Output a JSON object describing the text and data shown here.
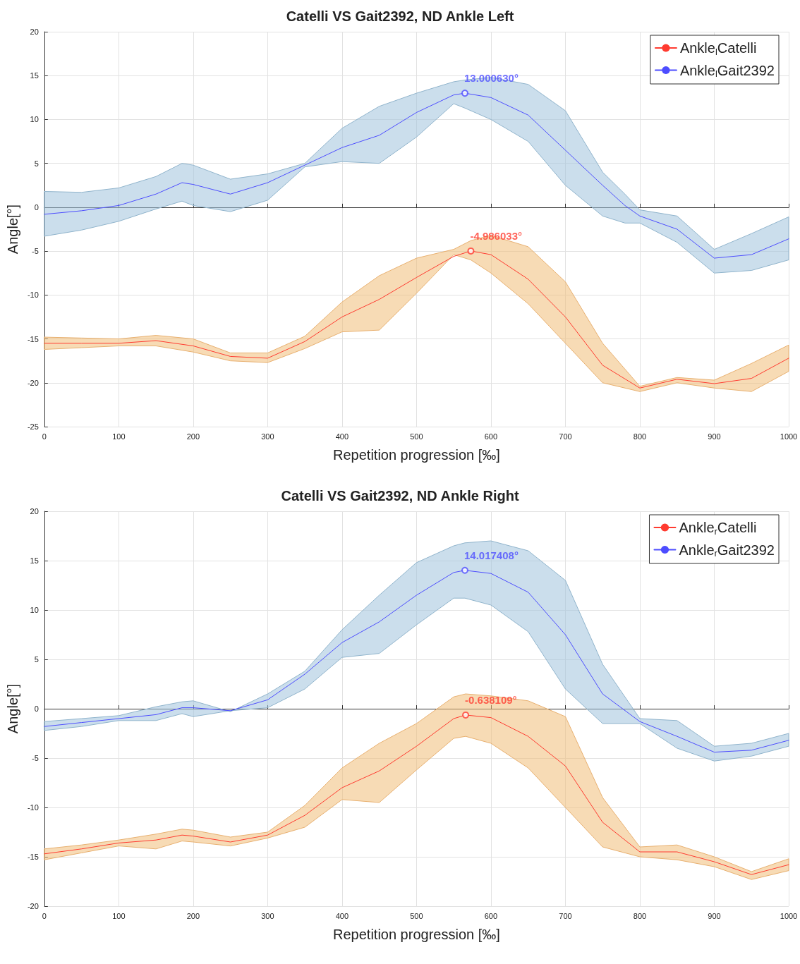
{
  "chart_data": [
    {
      "type": "line",
      "title": "Catelli VS Gait2392, ND Ankle Left",
      "xlabel": "Repetition progression [‰]",
      "ylabel": "Angle[°]",
      "xlim": [
        0,
        1000
      ],
      "xticks": [
        0,
        100,
        200,
        300,
        400,
        500,
        600,
        700,
        800,
        900,
        1000
      ],
      "ylim": [
        -25,
        20
      ],
      "yticks": [
        -25,
        -20,
        -15,
        -10,
        -5,
        0,
        5,
        10,
        15,
        20
      ],
      "grid": true,
      "legend": "top right",
      "marker": "none",
      "line_style": "solid",
      "series": [
        {
          "name": "Ankle$_{l}$Catelli",
          "color": "#ff3b30",
          "x": [
            0,
            50,
            100,
            150,
            200,
            250,
            300,
            350,
            400,
            450,
            500,
            550,
            573,
            600,
            650,
            700,
            750,
            800,
            850,
            900,
            950,
            1000
          ],
          "values": [
            -15.5,
            -15.5,
            -15.5,
            -15.2,
            -15.8,
            -17.0,
            -17.2,
            -15.3,
            -12.5,
            -10.5,
            -8.0,
            -5.6,
            -4.986033,
            -5.4,
            -8.2,
            -12.5,
            -18.0,
            -20.6,
            -19.6,
            -20.1,
            -19.5,
            -17.2
          ],
          "upper": [
            -14.8,
            -14.9,
            -15.0,
            -14.6,
            -15.0,
            -16.6,
            -16.6,
            -14.7,
            -10.8,
            -7.8,
            -5.8,
            -4.8,
            -3.8,
            -3.2,
            -4.5,
            -8.5,
            -15.5,
            -20.4,
            -19.4,
            -19.7,
            -17.8,
            -15.7
          ],
          "lower": [
            -16.2,
            -16.0,
            -15.8,
            -15.8,
            -16.5,
            -17.5,
            -17.7,
            -16.1,
            -14.2,
            -14.0,
            -9.8,
            -5.4,
            -6.0,
            -7.5,
            -11.0,
            -15.5,
            -20.0,
            -21.0,
            -20.0,
            -20.6,
            -21.0,
            -18.7
          ]
        },
        {
          "name": "Ankle$_{l}$Gait2392",
          "color": "#4d4dff",
          "x": [
            0,
            50,
            100,
            150,
            185,
            200,
            250,
            300,
            350,
            400,
            450,
            500,
            550,
            565,
            600,
            650,
            700,
            750,
            780,
            800,
            850,
            900,
            950,
            1000
          ],
          "values": [
            -0.8,
            -0.4,
            0.2,
            1.5,
            2.8,
            2.6,
            1.5,
            2.8,
            4.8,
            6.8,
            8.2,
            10.8,
            12.8,
            13.00063,
            12.5,
            10.5,
            6.5,
            2.5,
            0.2,
            -1.0,
            -2.5,
            -5.8,
            -5.4,
            -3.6
          ],
          "upper": [
            1.8,
            1.7,
            2.2,
            3.5,
            5.0,
            4.8,
            3.2,
            3.8,
            5.0,
            9.0,
            11.5,
            13.0,
            14.3,
            14.5,
            14.8,
            14.0,
            11.0,
            4.0,
            1.5,
            -0.3,
            -1.0,
            -4.8,
            -3.0,
            -1.1
          ],
          "lower": [
            -3.3,
            -2.6,
            -1.6,
            -0.2,
            0.7,
            0.2,
            -0.5,
            0.8,
            4.6,
            5.2,
            5.0,
            8.0,
            11.8,
            11.3,
            10.0,
            7.5,
            2.5,
            -1.0,
            -1.8,
            -1.8,
            -4.0,
            -7.5,
            -7.2,
            -6.0
          ]
        }
      ],
      "annotations": [
        {
          "text": "-4.986033°",
          "x": 573,
          "y": -4.986033
        },
        {
          "text": "13.000630°",
          "x": 565,
          "y": 13.00063
        }
      ]
    },
    {
      "type": "line",
      "title": "Catelli VS Gait2392, ND Ankle Right",
      "xlabel": "Repetition progression [‰]",
      "ylabel": "Angle[°]",
      "xlim": [
        0,
        1000
      ],
      "xticks": [
        0,
        100,
        200,
        300,
        400,
        500,
        600,
        700,
        800,
        900,
        1000
      ],
      "ylim": [
        -20,
        20
      ],
      "yticks": [
        -20,
        -15,
        -10,
        -5,
        0,
        5,
        10,
        15,
        20
      ],
      "grid": true,
      "legend": "top right",
      "marker": "none",
      "line_style": "solid",
      "series": [
        {
          "name": "Ankle$_{r}$Catelli",
          "color": "#ff3b30",
          "x": [
            0,
            50,
            100,
            150,
            185,
            200,
            250,
            300,
            350,
            400,
            450,
            500,
            550,
            566,
            600,
            650,
            700,
            750,
            800,
            850,
            900,
            950,
            1000
          ],
          "values": [
            -14.7,
            -14.2,
            -13.6,
            -13.3,
            -12.8,
            -12.9,
            -13.5,
            -12.8,
            -10.8,
            -8.0,
            -6.3,
            -3.8,
            -1.0,
            -0.638109,
            -0.9,
            -2.8,
            -5.8,
            -11.5,
            -14.5,
            -14.5,
            -15.5,
            -16.8,
            -15.8
          ],
          "upper": [
            -14.2,
            -13.8,
            -13.3,
            -12.7,
            -12.2,
            -12.3,
            -13.0,
            -12.5,
            -9.8,
            -6.0,
            -3.5,
            -1.5,
            1.2,
            1.5,
            1.3,
            0.8,
            -0.8,
            -9.0,
            -14.0,
            -13.8,
            -15.0,
            -16.5,
            -15.2
          ],
          "lower": [
            -15.3,
            -14.6,
            -13.9,
            -14.2,
            -13.4,
            -13.5,
            -13.9,
            -13.1,
            -12.0,
            -9.2,
            -9.5,
            -6.2,
            -3.0,
            -2.8,
            -3.5,
            -6.0,
            -10.0,
            -14.0,
            -15.0,
            -15.3,
            -16.0,
            -17.3,
            -16.4
          ]
        },
        {
          "name": "Ankle$_{r}$Gait2392",
          "color": "#4d4dff",
          "x": [
            0,
            50,
            100,
            150,
            185,
            200,
            250,
            300,
            350,
            400,
            450,
            500,
            550,
            565,
            600,
            650,
            700,
            750,
            800,
            850,
            900,
            950,
            1000
          ],
          "values": [
            -1.8,
            -1.4,
            -1.0,
            -0.6,
            0.1,
            0.1,
            -0.2,
            0.9,
            3.5,
            6.7,
            8.8,
            11.5,
            13.8,
            14.017408,
            13.7,
            11.8,
            7.5,
            1.5,
            -1.3,
            -2.8,
            -4.4,
            -4.2,
            -3.2
          ],
          "upper": [
            -1.3,
            -1.0,
            -0.7,
            0.2,
            0.7,
            0.8,
            -0.3,
            1.5,
            3.8,
            8.0,
            11.5,
            14.8,
            16.5,
            16.8,
            17.0,
            16.0,
            13.0,
            4.5,
            -1.0,
            -1.2,
            -3.8,
            -3.5,
            -2.5
          ],
          "lower": [
            -2.2,
            -1.8,
            -1.2,
            -1.2,
            -0.5,
            -0.8,
            -0.2,
            0.1,
            2.0,
            5.2,
            5.6,
            8.5,
            11.2,
            11.2,
            10.5,
            7.8,
            2.0,
            -1.5,
            -1.5,
            -4.0,
            -5.3,
            -4.8,
            -3.8
          ]
        }
      ],
      "annotations": [
        {
          "text": "-0.638109°",
          "x": 566,
          "y": -0.638109
        },
        {
          "text": "14.017408°",
          "x": 565,
          "y": 14.017408
        }
      ]
    }
  ]
}
